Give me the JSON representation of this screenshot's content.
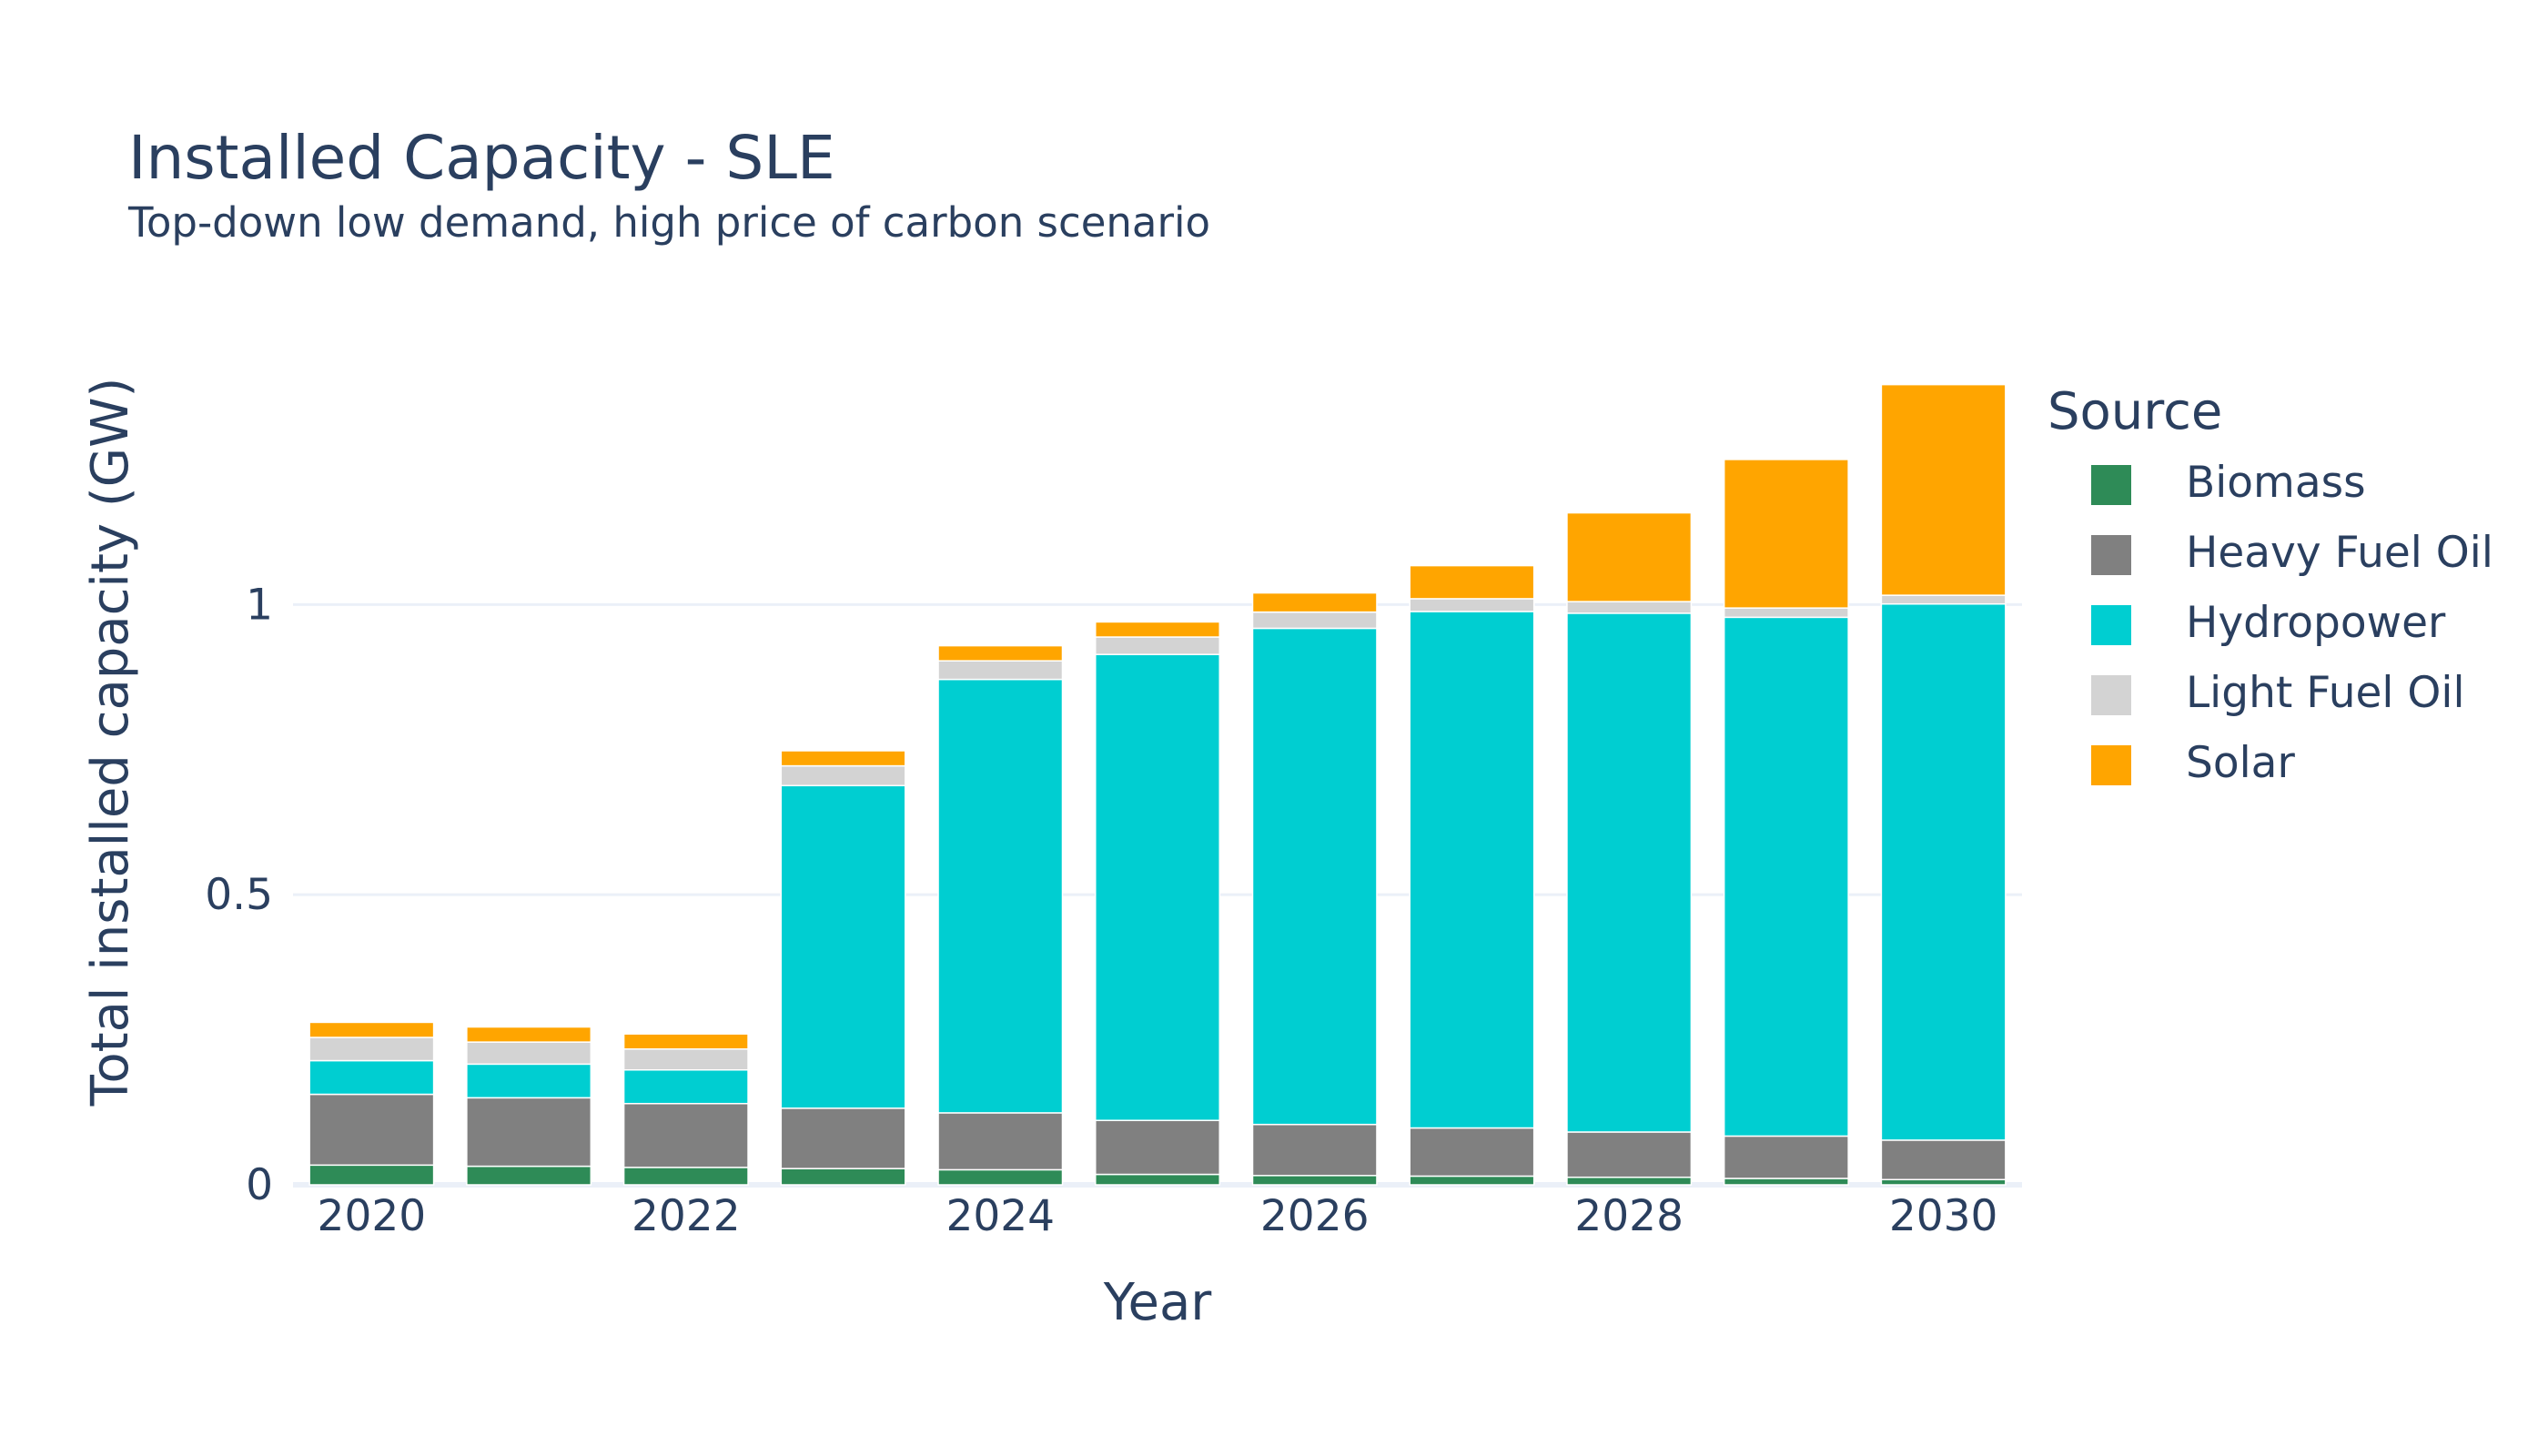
{
  "chart_data": {
    "type": "bar",
    "barmode": "stack",
    "title": "Installed Capacity - SLE",
    "subtitle": "Top-down low demand, high price of carbon scenario",
    "xlabel": "Year",
    "ylabel": "Total installed capacity (GW)",
    "legend_title": "Source",
    "legend_position": "right",
    "grid": true,
    "ylim": [
      0,
      1.38
    ],
    "x": [
      2020,
      2021,
      2022,
      2023,
      2024,
      2025,
      2026,
      2027,
      2028,
      2029,
      2030
    ],
    "x_ticks": [
      "2020",
      "2022",
      "2024",
      "2026",
      "2028",
      "2030"
    ],
    "x_tick_values": [
      2020,
      2022,
      2024,
      2026,
      2028,
      2030
    ],
    "y_ticks": [
      "0",
      "0.5",
      "1"
    ],
    "y_tick_values": [
      0,
      0.5,
      1
    ],
    "series": [
      {
        "name": "Biomass",
        "color": "#2e8b57",
        "values": [
          0.034,
          0.032,
          0.03,
          0.028,
          0.026,
          0.018,
          0.016,
          0.015,
          0.013,
          0.011,
          0.009
        ]
      },
      {
        "name": "Heavy Fuel Oil",
        "color": "#808080",
        "values": [
          0.122,
          0.118,
          0.11,
          0.104,
          0.098,
          0.093,
          0.088,
          0.083,
          0.078,
          0.073,
          0.068
        ]
      },
      {
        "name": "Hydropower",
        "color": "#00ced1",
        "values": [
          0.058,
          0.058,
          0.058,
          0.556,
          0.747,
          0.803,
          0.855,
          0.89,
          0.894,
          0.894,
          0.924
        ]
      },
      {
        "name": "Light Fuel Oil",
        "color": "#d3d3d3",
        "values": [
          0.04,
          0.038,
          0.036,
          0.034,
          0.032,
          0.03,
          0.028,
          0.022,
          0.02,
          0.016,
          0.015
        ]
      },
      {
        "name": "Solar",
        "color": "#ffa500",
        "values": [
          0.026,
          0.026,
          0.026,
          0.026,
          0.026,
          0.026,
          0.033,
          0.057,
          0.153,
          0.256,
          0.363
        ]
      }
    ]
  }
}
